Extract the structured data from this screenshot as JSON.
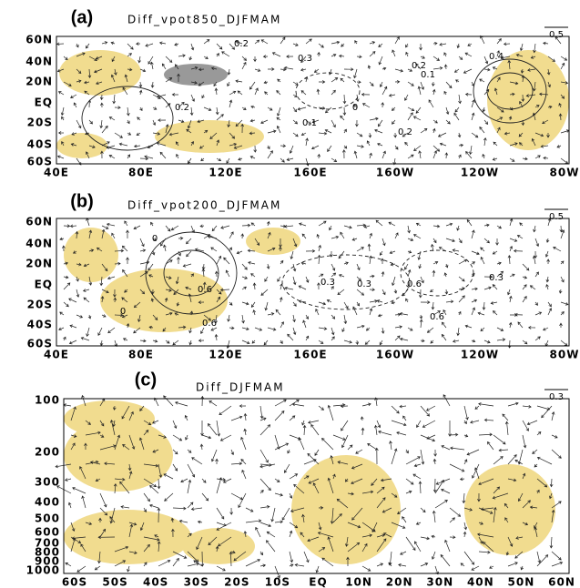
{
  "panels": [
    {
      "label": "(a)",
      "title": "Diff_vpot850_DJFMAM",
      "ref": "0.5",
      "xticks": [
        "40E",
        "80E",
        "120E",
        "160E",
        "160W",
        "120W",
        "80W"
      ],
      "yticks": [
        "60N",
        "40N",
        "20N",
        "EQ",
        "20S",
        "40S",
        "60S"
      ],
      "contour_labels": [
        "0.2",
        "0.3",
        "0.2",
        "0.1",
        "0.4",
        "0.2",
        "0.1",
        "0.2",
        "0"
      ]
    },
    {
      "label": "(b)",
      "title": "Diff_vpot200_DJFMAM",
      "ref": "0.5",
      "xticks": [
        "40E",
        "80E",
        "120E",
        "160E",
        "160W",
        "120W",
        "80W"
      ],
      "yticks": [
        "60N",
        "40N",
        "20N",
        "EQ",
        "20S",
        "40S",
        "60S"
      ],
      "contour_labels": [
        "0",
        "0.3",
        "0.6",
        "0.3",
        "0.6",
        "0.3",
        "0.6",
        "0.6",
        "0"
      ]
    },
    {
      "label": "(c)",
      "title": "Diff_DJFMAM",
      "ref": "0.3",
      "xticks": [
        "60S",
        "50S",
        "40S",
        "30S",
        "20S",
        "10S",
        "EQ",
        "10N",
        "20N",
        "30N",
        "40N",
        "50N",
        "60N"
      ],
      "yticks": [
        "100",
        "200",
        "300",
        "400",
        "500",
        "600",
        "700",
        "800",
        "900",
        "1000"
      ],
      "contour_labels": []
    }
  ]
}
